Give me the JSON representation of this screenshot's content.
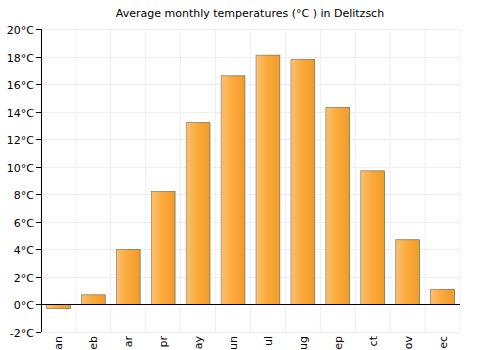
{
  "chart_data": {
    "type": "bar",
    "title": "Average monthly temperatures (°C ) in Delitzsch",
    "categories": [
      "an",
      "eb",
      "ar",
      "pr",
      "ay",
      "un",
      "ul",
      "ug",
      "ep",
      "ct",
      "ov",
      "ec"
    ],
    "values": [
      -0.3,
      0.7,
      4.0,
      8.2,
      13.2,
      16.6,
      18.1,
      17.8,
      14.3,
      9.7,
      4.7,
      1.1
    ],
    "color": "#fba42e",
    "ylim": [
      -2,
      20
    ],
    "yticks": [
      {
        "value": -2,
        "label": "-2°C"
      },
      {
        "value": 0,
        "label": "0°C"
      },
      {
        "value": 2,
        "label": "2°C"
      },
      {
        "value": 4,
        "label": "4°C"
      },
      {
        "value": 6,
        "label": "6°C"
      },
      {
        "value": 8,
        "label": "8°C"
      },
      {
        "value": 10,
        "label": "10°C"
      },
      {
        "value": 12,
        "label": "12°C"
      },
      {
        "value": 14,
        "label": "14°C"
      },
      {
        "value": 16,
        "label": "16°C"
      },
      {
        "value": 18,
        "label": "18°C"
      },
      {
        "value": 20,
        "label": "20°C"
      }
    ],
    "grid": true
  }
}
